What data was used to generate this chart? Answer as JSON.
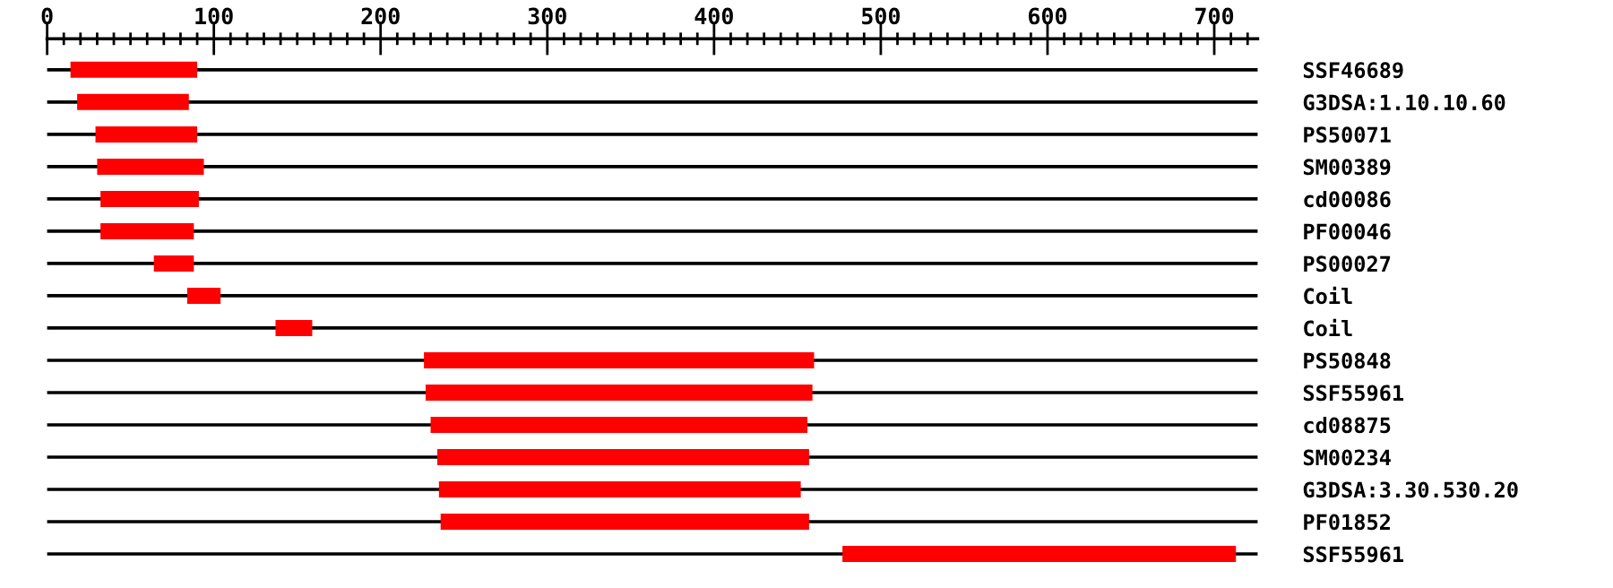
{
  "chart_data": {
    "type": "bar",
    "orientation": "horizontal",
    "categories": [
      "SSF46689",
      "G3DSA:1.10.10.60",
      "PS50071",
      "SM00389",
      "cd00086",
      "PF00046",
      "PS00027",
      "Coil",
      "Coil",
      "PS50848",
      "SSF55961",
      "cd08875",
      "SM00234",
      "G3DSA:3.30.530.20",
      "PF01852",
      "SSF55961"
    ],
    "base": [
      14,
      18,
      29,
      30,
      32,
      32,
      64,
      84,
      137,
      226,
      227,
      230,
      234,
      235,
      236,
      477
    ],
    "values": [
      76,
      67,
      61,
      64,
      59,
      56,
      24,
      20,
      22,
      234,
      232,
      226,
      223,
      217,
      221,
      236
    ],
    "color": "#ff0000",
    "xlim": [
      0,
      726
    ],
    "xticks": [
      0,
      {
        "value": 10,
        "label": null
      },
      {
        "value": 20,
        "label": null
      },
      {
        "value": 30,
        "label": null
      },
      {
        "value": 40,
        "label": null
      },
      {
        "value": 50,
        "label": null
      },
      {
        "value": 60,
        "label": null
      },
      {
        "value": 70,
        "label": null
      },
      {
        "value": 80,
        "label": null
      },
      {
        "value": 90,
        "label": null
      },
      100,
      {
        "value": 110,
        "label": null
      },
      {
        "value": 120,
        "label": null
      },
      {
        "value": 130,
        "label": null
      },
      {
        "value": 140,
        "label": null
      },
      {
        "value": 150,
        "label": null
      },
      {
        "value": 160,
        "label": null
      },
      {
        "value": 170,
        "label": null
      },
      {
        "value": 180,
        "label": null
      },
      {
        "value": 190,
        "label": null
      },
      200,
      {
        "value": 210,
        "label": null
      },
      {
        "value": 220,
        "label": null
      },
      {
        "value": 230,
        "label": null
      },
      {
        "value": 240,
        "label": null
      },
      {
        "value": 250,
        "label": null
      },
      {
        "value": 260,
        "label": null
      },
      {
        "value": 270,
        "label": null
      },
      {
        "value": 280,
        "label": null
      },
      {
        "value": 290,
        "label": null
      },
      300,
      {
        "value": 310,
        "label": null
      },
      {
        "value": 320,
        "label": null
      },
      {
        "value": 330,
        "label": null
      },
      {
        "value": 340,
        "label": null
      },
      {
        "value": 350,
        "label": null
      },
      {
        "value": 360,
        "label": null
      },
      {
        "value": 370,
        "label": null
      },
      {
        "value": 380,
        "label": null
      },
      {
        "value": 390,
        "label": null
      },
      400,
      {
        "value": 410,
        "label": null
      },
      {
        "value": 420,
        "label": null
      },
      {
        "value": 430,
        "label": null
      },
      {
        "value": 440,
        "label": null
      },
      {
        "value": 450,
        "label": null
      },
      {
        "value": 460,
        "label": null
      },
      {
        "value": 470,
        "label": null
      },
      {
        "value": 480,
        "label": null
      },
      {
        "value": 490,
        "label": null
      },
      500,
      {
        "value": 510,
        "label": null
      },
      {
        "value": 520,
        "label": null
      },
      {
        "value": 530,
        "label": null
      },
      {
        "value": 540,
        "label": null
      },
      {
        "value": 550,
        "label": null
      },
      {
        "value": 560,
        "label": null
      },
      {
        "value": 570,
        "label": null
      },
      {
        "value": 580,
        "label": null
      },
      {
        "value": 590,
        "label": null
      },
      600,
      {
        "value": 610,
        "label": null
      },
      {
        "value": 620,
        "label": null
      },
      {
        "value": 630,
        "label": null
      },
      {
        "value": 640,
        "label": null
      },
      {
        "value": 650,
        "label": null
      },
      {
        "value": 660,
        "label": null
      },
      {
        "value": 670,
        "label": null
      },
      {
        "value": 680,
        "label": null
      },
      {
        "value": 690,
        "label": null
      },
      700,
      {
        "value": 710,
        "label": null
      },
      {
        "value": 720,
        "label": null
      }
    ],
    "grid": "y"
  }
}
